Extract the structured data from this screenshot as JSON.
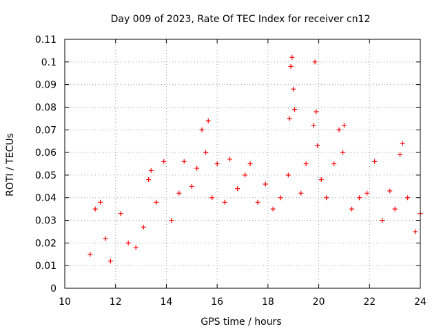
{
  "chart_data": {
    "type": "scatter",
    "title": "Day 009 of 2023, Rate Of TEC Index for receiver cn12",
    "xlabel": "GPS time / hours",
    "ylabel": "ROTI / TECUs",
    "xlim": [
      10,
      24
    ],
    "ylim": [
      0,
      0.11
    ],
    "xticks": [
      10,
      12,
      14,
      16,
      18,
      20,
      22,
      24
    ],
    "yticks": [
      0,
      0.01,
      0.02,
      0.03,
      0.04,
      0.05,
      0.06,
      0.07,
      0.08,
      0.09,
      0.1,
      0.11
    ],
    "xtick_labels": [
      "10",
      "12",
      "14",
      "16",
      "18",
      "20",
      "22",
      "24"
    ],
    "ytick_labels": [
      "0",
      "0.01",
      "0.02",
      "0.03",
      "0.04",
      "0.05",
      "0.06",
      "0.07",
      "0.08",
      "0.09",
      "0.1",
      "0.11"
    ],
    "grid": true,
    "marker": "+",
    "color": "#ff0000",
    "series": [
      {
        "name": "cn12",
        "points": [
          [
            11.0,
            0.015
          ],
          [
            11.2,
            0.035
          ],
          [
            11.4,
            0.038
          ],
          [
            11.6,
            0.022
          ],
          [
            11.8,
            0.012
          ],
          [
            12.2,
            0.033
          ],
          [
            12.5,
            0.02
          ],
          [
            12.8,
            0.018
          ],
          [
            13.1,
            0.027
          ],
          [
            13.3,
            0.048
          ],
          [
            13.4,
            0.052
          ],
          [
            13.6,
            0.038
          ],
          [
            13.9,
            0.056
          ],
          [
            14.2,
            0.03
          ],
          [
            14.5,
            0.042
          ],
          [
            14.7,
            0.056
          ],
          [
            15.0,
            0.045
          ],
          [
            15.2,
            0.053
          ],
          [
            15.4,
            0.07
          ],
          [
            15.55,
            0.06
          ],
          [
            15.65,
            0.074
          ],
          [
            15.8,
            0.04
          ],
          [
            16.0,
            0.055
          ],
          [
            16.3,
            0.038
          ],
          [
            16.5,
            0.057
          ],
          [
            16.8,
            0.044
          ],
          [
            17.1,
            0.05
          ],
          [
            17.3,
            0.055
          ],
          [
            17.6,
            0.038
          ],
          [
            17.9,
            0.046
          ],
          [
            18.2,
            0.035
          ],
          [
            18.5,
            0.04
          ],
          [
            18.8,
            0.05
          ],
          [
            18.85,
            0.075
          ],
          [
            18.9,
            0.098
          ],
          [
            18.95,
            0.102
          ],
          [
            19.0,
            0.088
          ],
          [
            19.05,
            0.079
          ],
          [
            19.3,
            0.042
          ],
          [
            19.5,
            0.055
          ],
          [
            19.8,
            0.072
          ],
          [
            19.85,
            0.1
          ],
          [
            19.9,
            0.078
          ],
          [
            19.95,
            0.063
          ],
          [
            20.1,
            0.048
          ],
          [
            20.3,
            0.04
          ],
          [
            20.6,
            0.055
          ],
          [
            20.8,
            0.07
          ],
          [
            20.95,
            0.06
          ],
          [
            21.0,
            0.072
          ],
          [
            21.3,
            0.035
          ],
          [
            21.6,
            0.04
          ],
          [
            21.9,
            0.042
          ],
          [
            22.2,
            0.056
          ],
          [
            22.5,
            0.03
          ],
          [
            22.8,
            0.043
          ],
          [
            23.0,
            0.035
          ],
          [
            23.2,
            0.059
          ],
          [
            23.3,
            0.064
          ],
          [
            23.5,
            0.04
          ],
          [
            23.8,
            0.025
          ],
          [
            24.0,
            0.033
          ]
        ]
      }
    ]
  }
}
